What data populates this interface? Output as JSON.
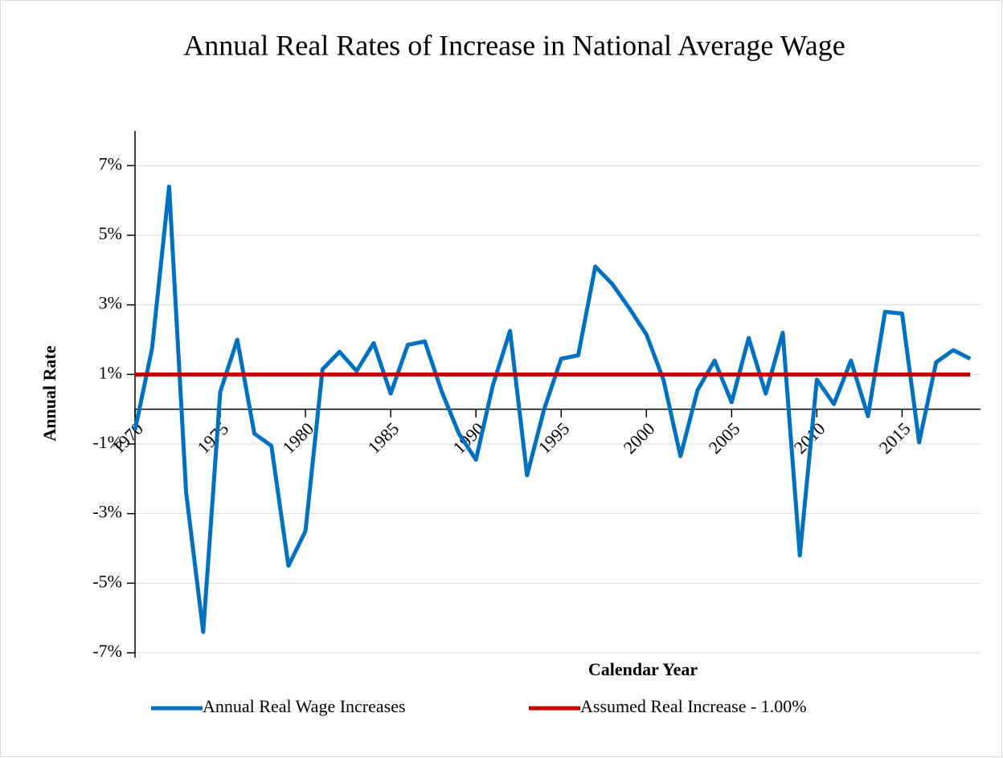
{
  "chart_data": {
    "type": "line",
    "title": "Annual Real Rates of Increase in National Average Wage",
    "xlabel": "Calendar Year",
    "ylabel": "Annual Rate",
    "x": [
      1970,
      1971,
      1972,
      1973,
      1974,
      1975,
      1976,
      1977,
      1978,
      1979,
      1980,
      1981,
      1982,
      1983,
      1984,
      1985,
      1986,
      1987,
      1988,
      1989,
      1990,
      1991,
      1992,
      1993,
      1994,
      1995,
      1996,
      1997,
      1998,
      1999,
      2000,
      2001,
      2002,
      2003,
      2004,
      2005,
      2006,
      2007,
      2008,
      2009,
      2010,
      2011,
      2012,
      2013,
      2014,
      2015,
      2016,
      2017,
      2018,
      2019
    ],
    "series": [
      {
        "name": "Annual Real Wage Increases",
        "color": "#0070c0",
        "values": [
          -0.6,
          1.75,
          6.4,
          -2.4,
          -6.4,
          0.5,
          2.0,
          -0.7,
          -1.05,
          -4.5,
          -3.5,
          1.15,
          1.65,
          1.1,
          1.9,
          0.45,
          1.85,
          1.95,
          0.5,
          -0.7,
          -1.45,
          0.7,
          2.25,
          -1.9,
          0.0,
          1.45,
          1.55,
          4.1,
          3.6,
          2.9,
          2.15,
          0.85,
          -1.35,
          0.55,
          1.4,
          0.2,
          2.05,
          0.45,
          2.2,
          -4.2,
          0.85,
          0.15,
          1.4,
          -0.2,
          2.8,
          2.75,
          -0.95,
          1.35,
          1.7,
          1.45
        ]
      },
      {
        "name": "Assumed Real Increase - 1.00%",
        "color": "#c00000",
        "values": [
          1,
          1,
          1,
          1,
          1,
          1,
          1,
          1,
          1,
          1,
          1,
          1,
          1,
          1,
          1,
          1,
          1,
          1,
          1,
          1,
          1,
          1,
          1,
          1,
          1,
          1,
          1,
          1,
          1,
          1,
          1,
          1,
          1,
          1,
          1,
          1,
          1,
          1,
          1,
          1,
          1,
          1,
          1,
          1,
          1,
          1,
          1,
          1,
          1,
          1
        ]
      }
    ],
    "xlim": [
      1970,
      2019.6
    ],
    "xticks": [
      1970,
      1975,
      1980,
      1985,
      1990,
      1995,
      2000,
      2005,
      2010,
      2015
    ],
    "ylim": [
      -7,
      8
    ],
    "yticks": [
      {
        "value": -7,
        "label": "-7%"
      },
      {
        "value": -5,
        "label": "-5%"
      },
      {
        "value": -3,
        "label": "-3%"
      },
      {
        "value": -1,
        "label": "-1%"
      },
      {
        "value": 1,
        "label": "1%"
      },
      {
        "value": 3,
        "label": "3%"
      },
      {
        "value": 5,
        "label": "5%"
      },
      {
        "value": 7,
        "label": "7%"
      }
    ],
    "grid": true,
    "legend": "bottom"
  }
}
